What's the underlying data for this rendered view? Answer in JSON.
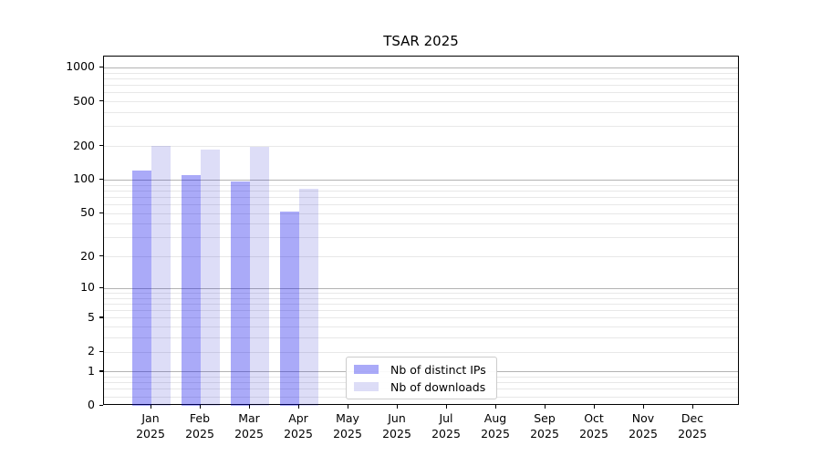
{
  "chart_data": {
    "type": "bar",
    "title": "TSAR 2025",
    "categories": [
      "Jan",
      "Feb",
      "Mar",
      "Apr",
      "May",
      "Jun",
      "Jul",
      "Aug",
      "Sep",
      "Oct",
      "Nov",
      "Dec"
    ],
    "category_year": "2025",
    "series": [
      {
        "name": "Nb of distinct IPs",
        "color": "rgba(0,0,235,0.335)",
        "values": [
          121,
          110,
          97,
          52,
          0,
          0,
          0,
          0,
          0,
          0,
          0,
          0
        ]
      },
      {
        "name": "Nb of downloads",
        "color": "rgba(0,0,195,0.135)",
        "values": [
          203,
          188,
          200,
          83,
          0,
          0,
          0,
          0,
          0,
          0,
          0,
          0
        ]
      }
    ],
    "yscale": "log1p",
    "ylim": [
      0,
      1259
    ],
    "yticks": [
      0,
      1,
      2,
      5,
      10,
      20,
      50,
      100,
      200,
      500,
      1000
    ],
    "grid": {
      "major": [
        1,
        10,
        100,
        1000
      ],
      "minor": [
        0.2,
        0.4,
        0.6,
        0.8,
        2,
        3,
        4,
        5,
        6,
        7,
        8,
        9,
        20,
        30,
        40,
        50,
        60,
        70,
        80,
        90,
        200,
        300,
        400,
        500,
        600,
        700,
        800,
        900
      ]
    },
    "legend_position": "lower-center-inside"
  },
  "style": {
    "background": "#ffffff",
    "text_color": "#000000",
    "spine_color": "#000000",
    "grid_major_color": "#b3b3b3",
    "grid_minor_color": "#e8e8e8",
    "legend_border_color": "#cccccc"
  }
}
